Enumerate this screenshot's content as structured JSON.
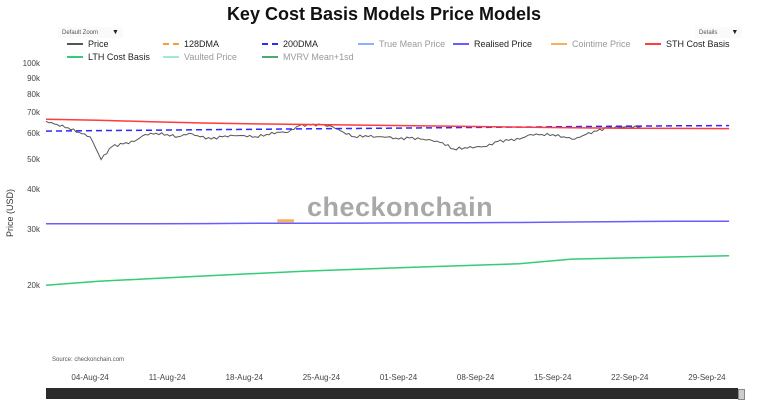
{
  "title": "Key Cost Basis Models Price Models",
  "zoom_dropdown": {
    "label": "Default Zoom"
  },
  "details_dropdown": {
    "label": "Details"
  },
  "source": "Source: checkonchain.com",
  "watermark": "checkonchain",
  "chart_data": {
    "type": "line",
    "title": "Key Cost Basis Models Price Models",
    "ylabel": "Price (USD)",
    "xlabel": "",
    "y_scale": "log",
    "ylim": [
      20000,
      100000
    ],
    "xlim": [
      "2024-07-31",
      "2024-10-02"
    ],
    "grid": false,
    "legend_placement": "top",
    "y_ticks": [
      {
        "value": 20000,
        "label": "20k"
      },
      {
        "value": 30000,
        "label": "30k"
      },
      {
        "value": 40000,
        "label": "40k"
      },
      {
        "value": 50000,
        "label": "50k"
      },
      {
        "value": 60000,
        "label": "60k"
      },
      {
        "value": 70000,
        "label": "70k"
      },
      {
        "value": 80000,
        "label": "80k"
      },
      {
        "value": 90000,
        "label": "90k"
      },
      {
        "value": 100000,
        "label": "100k"
      }
    ],
    "x_ticks": [
      {
        "date": "2024-08-04",
        "label": "04-Aug-24"
      },
      {
        "date": "2024-08-11",
        "label": "11-Aug-24"
      },
      {
        "date": "2024-08-18",
        "label": "18-Aug-24"
      },
      {
        "date": "2024-08-25",
        "label": "25-Aug-24"
      },
      {
        "date": "2024-09-01",
        "label": "01-Sep-24"
      },
      {
        "date": "2024-09-08",
        "label": "08-Sep-24"
      },
      {
        "date": "2024-09-15",
        "label": "15-Sep-24"
      },
      {
        "date": "2024-09-22",
        "label": "22-Sep-24"
      },
      {
        "date": "2024-09-29",
        "label": "29-Sep-24"
      }
    ],
    "series": [
      {
        "name": "Price",
        "color": "#555555",
        "dash": "solid",
        "start": "2024-07-31",
        "values": [
          66000,
          64500,
          63000,
          61000,
          59000,
          50000,
          55000,
          56000,
          57000,
          60000,
          60500,
          60000,
          59000,
          60500,
          59000,
          58000,
          59000,
          59500,
          59500,
          59000,
          60000,
          61000,
          61000,
          64000,
          64200,
          64300,
          63500,
          61000,
          59000,
          59500,
          59000,
          58900,
          58000,
          58500,
          58000,
          57500,
          56500,
          54000,
          54500,
          54800,
          55000,
          57000,
          57500,
          58000,
          60000,
          60000,
          60000,
          59000,
          58000,
          60000,
          61500,
          63000,
          63200,
          63500,
          63500
        ]
      },
      {
        "name": "128DMA",
        "color": "#f5a030",
        "dash": "dashed",
        "start": null,
        "values": []
      },
      {
        "name": "200DMA",
        "color": "#2a2aff",
        "dash": "dashed",
        "start": "2024-07-31",
        "values": [
          61500,
          61700,
          61900,
          62100,
          62300,
          62500,
          62700,
          62900,
          63100,
          63300,
          63500,
          63700,
          63900,
          64000
        ]
      },
      {
        "name": "True Mean Price",
        "color": "#8fb0ff",
        "dash": "solid",
        "start": null,
        "values": []
      },
      {
        "name": "Realised Price",
        "color": "#6b5cff",
        "dash": "solid",
        "start": "2024-07-31",
        "values": [
          31400,
          31400,
          31400,
          31450,
          31500,
          31500,
          31550,
          31600,
          31650,
          31700,
          31800,
          31900,
          32000,
          32000
        ]
      },
      {
        "name": "Cointime Price",
        "color": "#f5b060",
        "dash": "solid",
        "start": "2024-08-21",
        "values": [
          32100,
          32100
        ]
      },
      {
        "name": "STH Cost Basis",
        "color": "#ff3b3b",
        "dash": "solid",
        "start": "2024-07-31",
        "values": [
          67000,
          66500,
          65800,
          65200,
          64800,
          64500,
          64200,
          63900,
          63600,
          63300,
          63000,
          62800,
          62700,
          62600
        ]
      },
      {
        "name": "LTH Cost Basis",
        "color": "#33cc77",
        "dash": "solid",
        "start": "2024-07-31",
        "values": [
          20100,
          20700,
          21100,
          21500,
          21900,
          22300,
          22600,
          22900,
          23200,
          23500,
          24300,
          24500,
          24700,
          24900
        ]
      },
      {
        "name": "Vaulted Price",
        "color": "#9fead0",
        "dash": "solid",
        "start": null,
        "values": []
      },
      {
        "name": "MVRV Mean+1sd",
        "color": "#4fa873",
        "dash": "solid",
        "start": null,
        "values": []
      }
    ],
    "weekly_series_step_days": 4.77
  }
}
